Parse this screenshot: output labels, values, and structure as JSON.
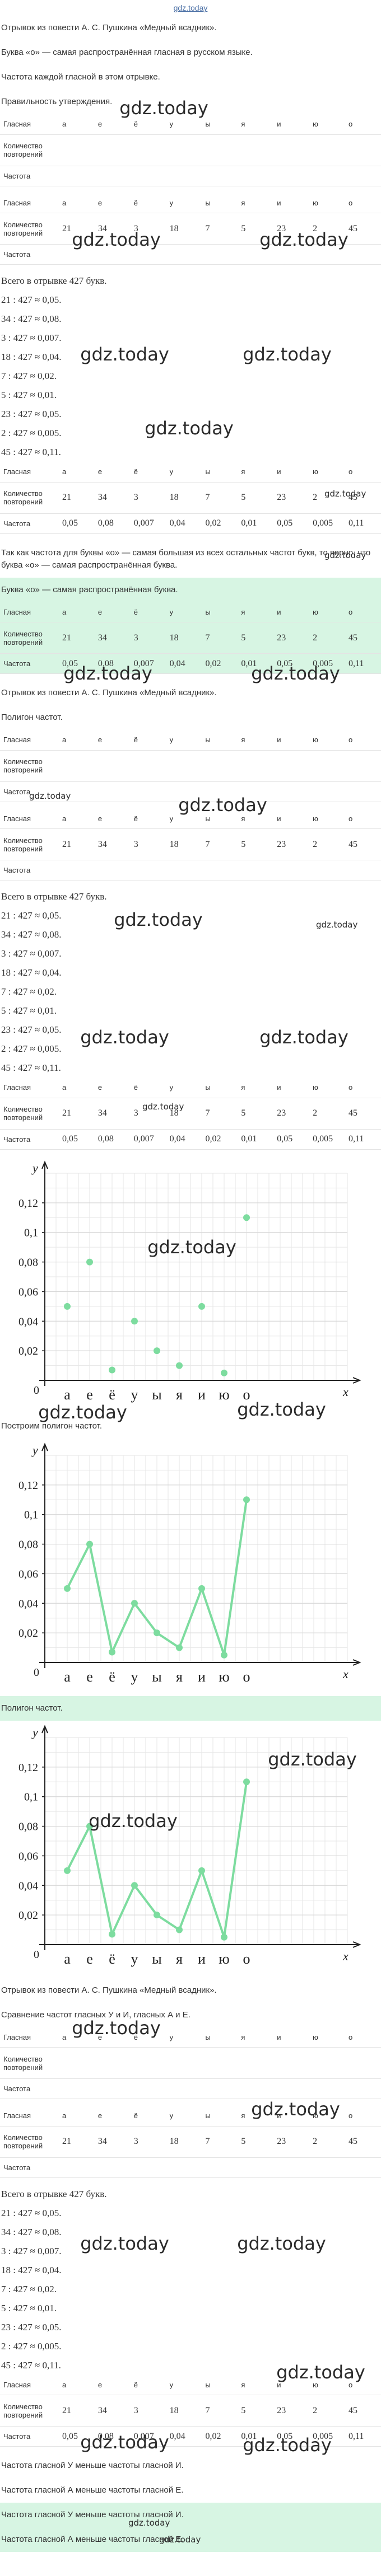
{
  "header": {
    "link": "gdz.today"
  },
  "blocks": [
    {
      "kind": "p",
      "text": "Отрывок из повести А. С. Пушкина «Медный всадник»."
    },
    {
      "kind": "p",
      "text": "Буква «о» — самая распространённая гласная в русском языке."
    },
    {
      "kind": "p",
      "text": "Частота каждой гласной в этом отрывке."
    },
    {
      "kind": "p",
      "text": "Правильность утверждения."
    },
    {
      "kind": "table",
      "rows": [
        [
          "Гласная",
          "а",
          "е",
          "ё",
          "у",
          "ы",
          "я",
          "и",
          "ю",
          "о"
        ],
        [
          "Количество повторений"
        ],
        [
          "Частота"
        ]
      ]
    },
    {
      "kind": "table",
      "rows": [
        [
          "Гласная",
          "а",
          "е",
          "ё",
          "у",
          "ы",
          "я",
          "и",
          "ю",
          "о"
        ],
        [
          "Количество повторений",
          21,
          34,
          3,
          18,
          7,
          5,
          23,
          2,
          45
        ],
        [
          "Частота"
        ]
      ]
    },
    {
      "kind": "list",
      "items": [
        "Всего в отрывке 427 букв.",
        "21 : 427 ≈ 0,05.",
        "34 : 427 ≈ 0,08.",
        "3 : 427 ≈ 0,007.",
        "18 : 427 ≈ 0,04.",
        "7 : 427 ≈ 0,02.",
        "5 : 427 ≈ 0,01.",
        "23 : 427 ≈ 0,05.",
        "2 : 427 ≈ 0,005.",
        "45 : 427 ≈ 0,11."
      ]
    },
    {
      "kind": "table",
      "rows": [
        [
          "Гласная",
          "а",
          "е",
          "ё",
          "у",
          "ы",
          "я",
          "и",
          "ю",
          "о"
        ],
        [
          "Количество повторений",
          21,
          34,
          3,
          18,
          7,
          5,
          23,
          2,
          45
        ],
        [
          "Частота",
          "0,05",
          "0,08",
          "0,007",
          "0,04",
          "0,02",
          "0,01",
          "0,05",
          "0,005",
          "0,11"
        ]
      ]
    },
    {
      "kind": "p",
      "text": "Так как частота для буквы «о» — самая большая из всех остальных частот букв, то верно, что буква «о» — самая распространённая буква."
    },
    {
      "kind": "p",
      "highlight": true,
      "text": "Буква «о» — самая распространённая буква."
    },
    {
      "kind": "table",
      "highlight": true,
      "rows": [
        [
          "Гласная",
          "а",
          "е",
          "ё",
          "у",
          "ы",
          "я",
          "и",
          "ю",
          "о"
        ],
        [
          "Количество повторений",
          21,
          34,
          3,
          18,
          7,
          5,
          23,
          2,
          45
        ],
        [
          "Частота",
          "0,05",
          "0,08",
          "0,007",
          "0,04",
          "0,02",
          "0,01",
          "0,05",
          "0,005",
          "0,11"
        ]
      ]
    },
    {
      "kind": "p",
      "text": "Отрывок из повести А. С. Пушкина «Медный всадник»."
    },
    {
      "kind": "p",
      "text": "Полигон частот."
    },
    {
      "kind": "table",
      "rows": [
        [
          "Гласная",
          "а",
          "е",
          "ё",
          "у",
          "ы",
          "я",
          "и",
          "ю",
          "о"
        ],
        [
          "Количество повторений"
        ],
        [
          "Частота"
        ]
      ]
    },
    {
      "kind": "table",
      "rows": [
        [
          "Гласная",
          "а",
          "е",
          "ё",
          "у",
          "ы",
          "я",
          "и",
          "ю",
          "о"
        ],
        [
          "Количество повторений",
          21,
          34,
          3,
          18,
          7,
          5,
          23,
          2,
          45
        ],
        [
          "Частота"
        ]
      ]
    },
    {
      "kind": "list",
      "items": [
        "Всего в отрывке 427 букв.",
        "21 : 427 ≈ 0,05.",
        "34 : 427 ≈ 0,08.",
        "3 : 427 ≈ 0,007.",
        "18 : 427 ≈ 0,04.",
        "7 : 427 ≈ 0,02.",
        "5 : 427 ≈ 0,01.",
        "23 : 427 ≈ 0,05.",
        "2 : 427 ≈ 0,005.",
        "45 : 427 ≈ 0,11."
      ]
    },
    {
      "kind": "table",
      "rows": [
        [
          "Гласная",
          "а",
          "е",
          "ё",
          "у",
          "ы",
          "я",
          "и",
          "ю",
          "о"
        ],
        [
          "Количество повторений",
          21,
          34,
          3,
          18,
          7,
          5,
          23,
          2,
          45
        ],
        [
          "Частота",
          "0,05",
          "0,08",
          "0,007",
          "0,04",
          "0,02",
          "0,01",
          "0,05",
          "0,005",
          "0,11"
        ]
      ]
    },
    {
      "kind": "chart",
      "type": "scatter",
      "categories": [
        "а",
        "е",
        "ё",
        "у",
        "ы",
        "я",
        "и",
        "ю",
        "о"
      ],
      "values": [
        0.05,
        0.08,
        0.007,
        0.04,
        0.02,
        0.01,
        0.05,
        0.005,
        0.11
      ],
      "ylim": [
        0,
        0.14
      ],
      "yticks": [
        {
          "value": 0.02,
          "label": "0,02"
        },
        {
          "value": 0.04,
          "label": "0,04"
        },
        {
          "value": 0.06,
          "label": "0,06"
        },
        {
          "value": 0.08,
          "label": "0,08"
        },
        {
          "value": 0.1,
          "label": "0,1"
        },
        {
          "value": 0.12,
          "label": "0,12"
        }
      ],
      "origin_label": "0",
      "x_label": "x",
      "y_label": "y",
      "color": "#7ddc9f",
      "grid": true
    },
    {
      "kind": "p",
      "text": "Построим полигон частот."
    },
    {
      "kind": "chart",
      "type": "line",
      "categories": [
        "а",
        "е",
        "ё",
        "у",
        "ы",
        "я",
        "и",
        "ю",
        "о"
      ],
      "values": [
        0.05,
        0.08,
        0.007,
        0.04,
        0.02,
        0.01,
        0.05,
        0.005,
        0.11
      ],
      "ylim": [
        0,
        0.14
      ],
      "yticks": [
        {
          "value": 0.02,
          "label": "0,02"
        },
        {
          "value": 0.04,
          "label": "0,04"
        },
        {
          "value": 0.06,
          "label": "0,06"
        },
        {
          "value": 0.08,
          "label": "0,08"
        },
        {
          "value": 0.1,
          "label": "0,1"
        },
        {
          "value": 0.12,
          "label": "0,12"
        }
      ],
      "origin_label": "0",
      "x_label": "x",
      "y_label": "y",
      "color": "#7ddc9f",
      "grid": true
    },
    {
      "kind": "p",
      "highlight": true,
      "text": "Полигон частот."
    },
    {
      "kind": "chart",
      "type": "line",
      "categories": [
        "а",
        "е",
        "ё",
        "у",
        "ы",
        "я",
        "и",
        "ю",
        "о"
      ],
      "values": [
        0.05,
        0.08,
        0.007,
        0.04,
        0.02,
        0.01,
        0.05,
        0.005,
        0.11
      ],
      "ylim": [
        0,
        0.14
      ],
      "yticks": [
        {
          "value": 0.02,
          "label": "0,02"
        },
        {
          "value": 0.04,
          "label": "0,04"
        },
        {
          "value": 0.06,
          "label": "0,06"
        },
        {
          "value": 0.08,
          "label": "0,08"
        },
        {
          "value": 0.1,
          "label": "0,1"
        },
        {
          "value": 0.12,
          "label": "0,12"
        }
      ],
      "origin_label": "0",
      "x_label": "x",
      "y_label": "y",
      "color": "#7ddc9f",
      "grid": true
    },
    {
      "kind": "p",
      "text": "Отрывок из повести А. С. Пушкина «Медный всадник»."
    },
    {
      "kind": "p",
      "text": "Сравнение частот гласных У и И, гласных А и Е."
    },
    {
      "kind": "table",
      "rows": [
        [
          "Гласная",
          "а",
          "е",
          "ё",
          "у",
          "ы",
          "я",
          "и",
          "ю",
          "о"
        ],
        [
          "Количество повторений"
        ],
        [
          "Частота"
        ]
      ]
    },
    {
      "kind": "table",
      "rows": [
        [
          "Гласная",
          "а",
          "е",
          "ё",
          "у",
          "ы",
          "я",
          "и",
          "ю",
          "о"
        ],
        [
          "Количество повторений",
          21,
          34,
          3,
          18,
          7,
          5,
          23,
          2,
          45
        ],
        [
          "Частота"
        ]
      ]
    },
    {
      "kind": "list",
      "items": [
        "Всего в отрывке 427 букв.",
        "21 : 427 ≈ 0,05.",
        "34 : 427 ≈ 0,08.",
        "3 : 427 ≈ 0,007.",
        "18 : 427 ≈ 0,04.",
        "7 : 427 ≈ 0,02.",
        "5 : 427 ≈ 0,01.",
        "23 : 427 ≈ 0,05.",
        "2 : 427 ≈ 0,005.",
        "45 : 427 ≈ 0,11."
      ]
    },
    {
      "kind": "table",
      "rows": [
        [
          "Гласная",
          "а",
          "е",
          "ё",
          "у",
          "ы",
          "я",
          "и",
          "ю",
          "о"
        ],
        [
          "Количество повторений",
          21,
          34,
          3,
          18,
          7,
          5,
          23,
          2,
          45
        ],
        [
          "Частота",
          "0,05",
          "0,08",
          "0,007",
          "0,04",
          "0,02",
          "0,01",
          "0,05",
          "0,005",
          "0,11"
        ]
      ]
    },
    {
      "kind": "p",
      "text": "Частота гласной У меньше частоты гласной И."
    },
    {
      "kind": "p",
      "text": "Частота гласной А меньше частоты гласной Е."
    },
    {
      "kind": "p",
      "highlight": true,
      "text": "Частота гласной У меньше частоты гласной И."
    },
    {
      "kind": "p",
      "highlight": true,
      "text": "Частота гласной А меньше частоты гласной Е."
    }
  ],
  "watermarks": [
    "gdz.today",
    "gdz.today",
    "gdz.today",
    "gdz.today",
    "gdz.today",
    "gdz.today",
    "gdz.today",
    "gdz.today",
    "gdz.today",
    "gdz.today",
    "gdz.today",
    "gdz.today",
    "gdz.today",
    "gdz.today",
    "gdz.today",
    "gdz.today",
    "gdz.today",
    "gdz.today",
    "gdz.today",
    "gdz.today",
    "gdz.today",
    "gdz.today",
    "gdz.today",
    "gdz.today",
    "gdz.today",
    "gdz.today",
    "gdz.today",
    "gdz.today",
    "gdz.today",
    "gdz.today",
    "gdz.today"
  ]
}
